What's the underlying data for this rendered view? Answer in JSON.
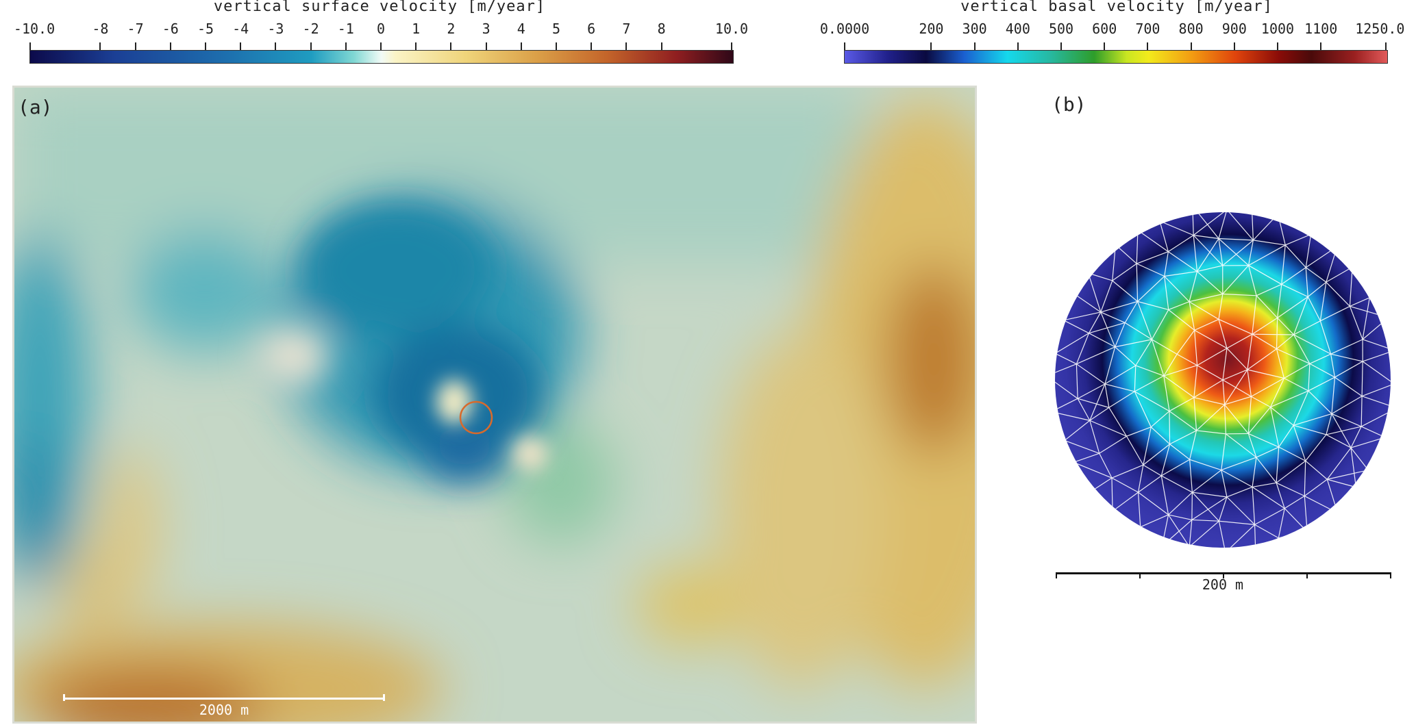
{
  "surface_colorbar": {
    "title": "vertical surface velocity [m/year]",
    "ticks": [
      "-10.0",
      "-8",
      "-7",
      "-6",
      "-5",
      "-4",
      "-3",
      "-2",
      "-1",
      "0",
      "1",
      "2",
      "3",
      "4",
      "5",
      "6",
      "7",
      "8",
      "10.0"
    ],
    "tick_values": [
      -10,
      -8,
      -7,
      -6,
      -5,
      -4,
      -3,
      -2,
      -1,
      0,
      1,
      2,
      3,
      4,
      5,
      6,
      7,
      8,
      10
    ],
    "range": [
      -10,
      10
    ],
    "colors": [
      "#0c0a4a",
      "#1a4fa0",
      "#1d86b8",
      "#4cc3cf",
      "#e9f7ee",
      "#fbf3c8",
      "#e8c45a",
      "#cf7f2b",
      "#a8281e",
      "#3a0b1c"
    ]
  },
  "basal_colorbar": {
    "title": "vertical basal velocity [m/year]",
    "ticks": [
      "0.0000",
      "200",
      "300",
      "400",
      "500",
      "600",
      "700",
      "800",
      "900",
      "1000",
      "1100",
      "1250.0"
    ],
    "tick_values": [
      0,
      200,
      300,
      400,
      500,
      600,
      700,
      800,
      900,
      1000,
      1100,
      1250
    ],
    "range": [
      0,
      1250
    ],
    "colors": [
      "#4b4bd6",
      "#0c0c5a",
      "#1b6fd8",
      "#19e6f0",
      "#1fb891",
      "#27a225",
      "#e6f020",
      "#f08c12",
      "#b81d0c",
      "#5a0c0c",
      "#e05656"
    ]
  },
  "panel_a": {
    "label": "(a)",
    "scale_bar": "2000 m",
    "colors": {
      "blue": "#0f7fa6",
      "teal": "#3ea8b6",
      "pale": "#c9dccb",
      "tan": "#d9bd6a",
      "brown": "#b66b24",
      "marker": "#d86a2c"
    }
  },
  "panel_b": {
    "label": "(b)",
    "scale_bar": "200 m",
    "colors": {
      "outer": "#3434a6",
      "ring_dark": "#0d0d4a",
      "cyan": "#1cd9e0",
      "green": "#2fb24a",
      "yellow": "#f2e62a",
      "orange": "#f28a1a",
      "red": "#c2201c",
      "center": "#7a1620",
      "mesh": "#ffffff"
    }
  }
}
